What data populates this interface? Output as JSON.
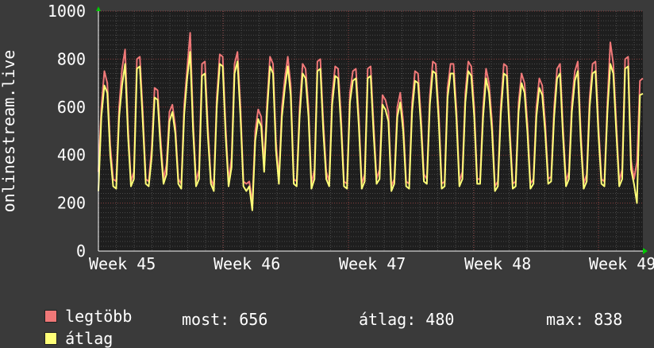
{
  "chart_data": {
    "type": "line",
    "ylabel": "onlinestream.live",
    "ylim": [
      0,
      1000
    ],
    "y_ticks": [
      0,
      200,
      400,
      600,
      800,
      1000
    ],
    "x_ticks": [
      "Week 45",
      "Week 46",
      "Week 47",
      "Week 48",
      "Week 49"
    ],
    "grid": true,
    "colors": {
      "background": "#3a3a3a",
      "plot": "#1e1e1e",
      "legtobb": "#f07878",
      "atlag": "#ffff78",
      "arrow": "#00c800"
    },
    "series": [
      {
        "name": "legtöbb",
        "color": "#f07878",
        "values": [
          330,
          600,
          750,
          700,
          440,
          300,
          290,
          600,
          760,
          840,
          520,
          290,
          330,
          800,
          810,
          580,
          300,
          290,
          430,
          680,
          670,
          470,
          300,
          360,
          580,
          610,
          520,
          300,
          280,
          610,
          760,
          910,
          540,
          290,
          340,
          780,
          790,
          520,
          300,
          270,
          640,
          820,
          810,
          520,
          290,
          390,
          780,
          830,
          600,
          290,
          280,
          290,
          200,
          500,
          590,
          560,
          360,
          620,
          810,
          780,
          460,
          300,
          600,
          720,
          810,
          690,
          300,
          290,
          600,
          780,
          760,
          600,
          280,
          340,
          790,
          800,
          540,
          330,
          290,
          650,
          770,
          760,
          560,
          290,
          280,
          660,
          750,
          760,
          560,
          280,
          320,
          760,
          770,
          530,
          300,
          340,
          650,
          630,
          580,
          270,
          300,
          600,
          660,
          540,
          290,
          280,
          620,
          750,
          740,
          560,
          320,
          300,
          650,
          790,
          780,
          580,
          280,
          290,
          680,
          780,
          780,
          590,
          290,
          330,
          660,
          790,
          770,
          600,
          300,
          300,
          600,
          760,
          700,
          540,
          270,
          290,
          610,
          780,
          770,
          520,
          280,
          290,
          620,
          740,
          700,
          530,
          280,
          300,
          600,
          720,
          690,
          530,
          300,
          310,
          600,
          760,
          780,
          520,
          290,
          330,
          620,
          750,
          790,
          500,
          280,
          320,
          640,
          780,
          790,
          520,
          300,
          290,
          620,
          870,
          780,
          540,
          290,
          340,
          800,
          810,
          380,
          300,
          370,
          710,
          720
        ]
      },
      {
        "name": "átlag",
        "color": "#ffff78",
        "values": [
          250,
          560,
          690,
          660,
          400,
          270,
          260,
          560,
          690,
          780,
          480,
          270,
          300,
          760,
          770,
          540,
          280,
          270,
          390,
          640,
          630,
          430,
          280,
          320,
          540,
          580,
          490,
          280,
          260,
          570,
          720,
          830,
          500,
          270,
          300,
          730,
          740,
          480,
          280,
          250,
          600,
          780,
          770,
          480,
          270,
          350,
          740,
          790,
          560,
          270,
          250,
          270,
          170,
          460,
          550,
          520,
          330,
          580,
          770,
          740,
          420,
          280,
          560,
          680,
          770,
          650,
          280,
          270,
          560,
          740,
          720,
          560,
          260,
          300,
          750,
          760,
          500,
          300,
          270,
          610,
          730,
          720,
          520,
          270,
          260,
          620,
          710,
          720,
          520,
          260,
          290,
          720,
          730,
          490,
          280,
          300,
          610,
          590,
          540,
          250,
          280,
          560,
          620,
          500,
          270,
          260,
          580,
          710,
          700,
          520,
          290,
          280,
          610,
          750,
          740,
          540,
          260,
          270,
          640,
          740,
          740,
          550,
          270,
          300,
          620,
          750,
          730,
          560,
          280,
          280,
          560,
          720,
          660,
          500,
          250,
          270,
          570,
          740,
          730,
          480,
          260,
          270,
          580,
          700,
          660,
          490,
          260,
          280,
          560,
          680,
          650,
          490,
          280,
          290,
          560,
          720,
          740,
          480,
          270,
          300,
          580,
          710,
          750,
          460,
          260,
          290,
          600,
          740,
          750,
          480,
          280,
          270,
          580,
          780,
          740,
          500,
          270,
          300,
          760,
          770,
          340,
          280,
          200,
          650,
          656
        ]
      }
    ],
    "legend": [
      {
        "label": "legtöbb",
        "color": "#f07878"
      },
      {
        "label": "átlag",
        "color": "#ffff78"
      }
    ],
    "stats": {
      "most": "most: 656",
      "atlag": "átlag: 480",
      "max": "max: 838"
    }
  }
}
